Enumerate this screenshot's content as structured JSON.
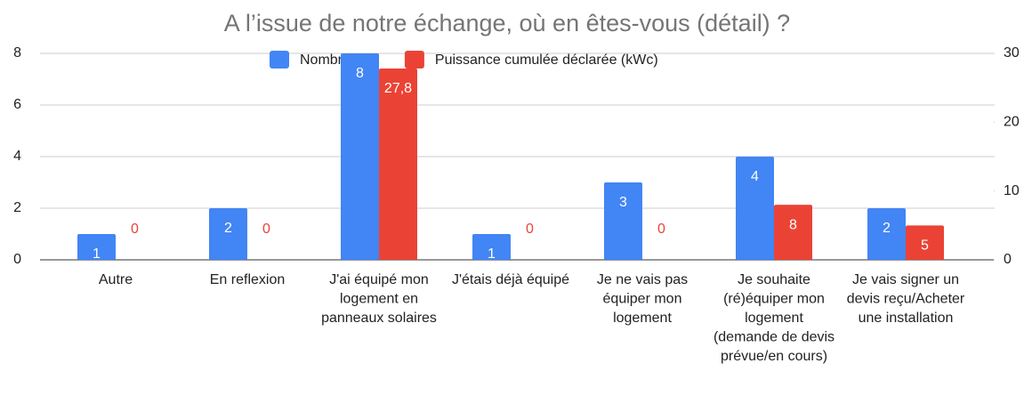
{
  "chart_data": {
    "type": "bar",
    "title": "A l’issue de notre échange, où en êtes-vous (détail) ?",
    "categories": [
      "Autre",
      "En reflexion",
      "J'ai équipé mon logement en panneaux solaires",
      "J'étais déjà équipé",
      "Je ne vais pas équiper mon logement",
      "Je souhaite (ré)équiper mon logement (demande de devis prévue/en cours)",
      "Je vais signer un devis reçu/Acheter une installation"
    ],
    "series": [
      {
        "name": "Nombre",
        "color": "#4285f4",
        "values": [
          1,
          2,
          8,
          1,
          3,
          4,
          2
        ]
      },
      {
        "name": "Puissance cumulée déclarée (kWc)",
        "color": "#ea4335",
        "axis": "y2",
        "values": [
          0,
          0,
          27.8,
          0,
          0,
          8,
          5
        ],
        "value_labels": [
          "0",
          "0",
          "27,8",
          "0",
          "0",
          "8",
          "5"
        ]
      }
    ],
    "ylim": [
      0,
      8
    ],
    "yticks": [
      0,
      2,
      4,
      6,
      8
    ],
    "y2lim": [
      0,
      30
    ],
    "y2ticks": [
      0,
      10,
      20,
      30
    ],
    "grid": true,
    "legend": "top"
  }
}
